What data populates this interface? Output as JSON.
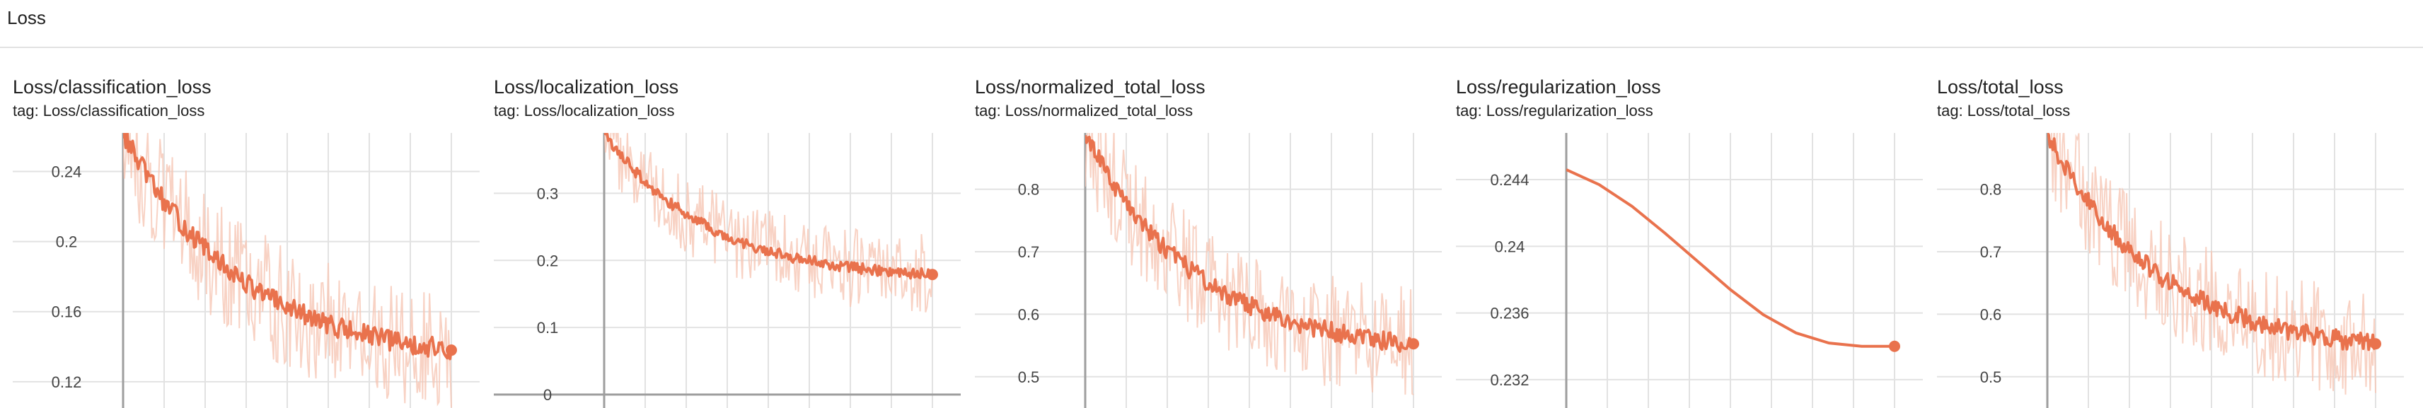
{
  "section": {
    "title": "Loss"
  },
  "accent_color": "#e9724d",
  "raw_color": "#f6c7b5",
  "tag_prefix": "tag:",
  "chart_data": [
    {
      "type": "line",
      "title": "Loss/classification_loss",
      "tag": "Loss/classification_loss",
      "y_ticks": [
        0.12,
        0.16,
        0.2,
        0.24
      ],
      "ylim": [
        0.105,
        0.262
      ],
      "x_gridlines": 9,
      "y_start": 0.262,
      "y_end": 0.13,
      "decay": 2.8,
      "smooth_noise": 0.006,
      "raw_noise": 0.035,
      "grid": true,
      "legend": "none"
    },
    {
      "type": "line",
      "title": "Loss/localization_loss",
      "tag": "Loss/localization_loss",
      "y_ticks": [
        0,
        0.1,
        0.2,
        0.3
      ],
      "ylim": [
        -0.02,
        0.39
      ],
      "x_gridlines": 9,
      "y_start": 0.39,
      "y_end": 0.17,
      "decay": 3.2,
      "smooth_noise": 0.008,
      "raw_noise": 0.06,
      "grid": true,
      "legend": "none"
    },
    {
      "type": "line",
      "title": "Loss/normalized_total_loss",
      "tag": "Loss/normalized_total_loss",
      "y_ticks": [
        0.5,
        0.6,
        0.7,
        0.8
      ],
      "ylim": [
        0.45,
        0.89
      ],
      "x_gridlines": 9,
      "y_start": 0.89,
      "y_end": 0.535,
      "decay": 3.0,
      "smooth_noise": 0.015,
      "raw_noise": 0.09,
      "grid": true,
      "legend": "none"
    },
    {
      "type": "line",
      "title": "Loss/regularization_loss",
      "tag": "Loss/regularization_loss",
      "y_ticks": [
        0.232,
        0.236,
        0.24,
        0.244
      ],
      "ylim": [
        0.2303,
        0.2468
      ],
      "x_gridlines": 9,
      "smooth_curve": true,
      "x": [
        0,
        0.1,
        0.2,
        0.3,
        0.4,
        0.5,
        0.6,
        0.7,
        0.8,
        0.9,
        1.0
      ],
      "y": [
        0.2446,
        0.2437,
        0.2424,
        0.2408,
        0.2391,
        0.2374,
        0.2359,
        0.2348,
        0.2342,
        0.234,
        0.234
      ],
      "grid": true,
      "legend": "none"
    },
    {
      "type": "line",
      "title": "Loss/total_loss",
      "tag": "Loss/total_loss",
      "y_ticks": [
        0.5,
        0.6,
        0.7,
        0.8
      ],
      "ylim": [
        0.45,
        0.89
      ],
      "x_gridlines": 9,
      "y_start": 0.89,
      "y_end": 0.535,
      "decay": 3.0,
      "smooth_noise": 0.015,
      "raw_noise": 0.09,
      "grid": true,
      "legend": "none"
    }
  ]
}
